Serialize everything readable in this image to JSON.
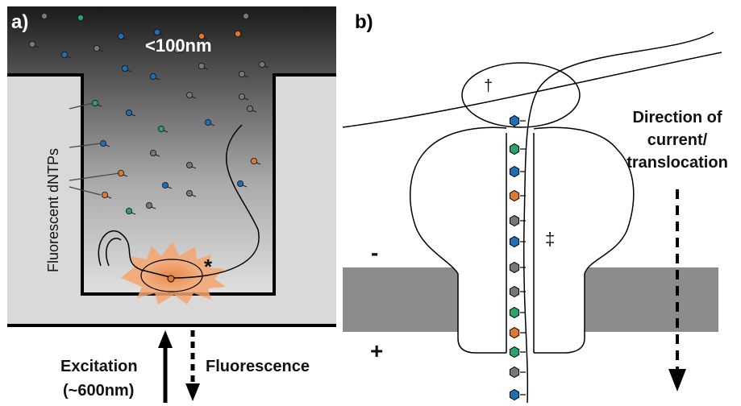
{
  "panel_a": {
    "label": "a)",
    "size_label": "<100nm",
    "dntp_label": "Fluorescent dNTPs",
    "marker": "*",
    "excitation": "Excitation",
    "wavelength": "(~600nm)",
    "fluorescence": "Fluorescence",
    "dntp_colors": [
      "#1f6fb5",
      "#2aa36b",
      "#e0782f",
      "#777777"
    ]
  },
  "panel_b": {
    "label": "b)",
    "dagger": "†",
    "double_dagger": "‡",
    "minus": "-",
    "plus": "+",
    "direction_lines": [
      "Direction of",
      "current/",
      "translocation"
    ],
    "nucleotide_colors": [
      "#1f6fb5",
      "#2aa36b",
      "#1f6fb5",
      "#e0782f",
      "#777777",
      "#1f6fb5",
      "#777777",
      "#777777",
      "#2aa36b",
      "#e0782f",
      "#2aa36b",
      "#777777",
      "#1f6fb5"
    ]
  }
}
